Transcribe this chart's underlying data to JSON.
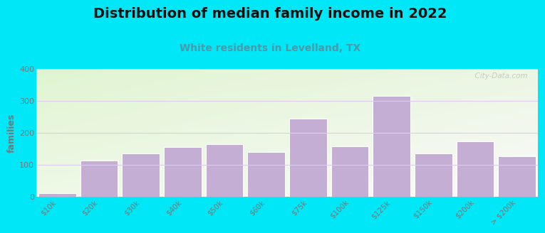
{
  "title": "Distribution of median family income in 2022",
  "subtitle": "White residents in Levelland, TX",
  "categories": [
    "$10k",
    "$20k",
    "$30k",
    "$40k",
    "$50k",
    "$60k",
    "$75k",
    "$100k",
    "$125k",
    "$150k",
    "$200k",
    "> $200k"
  ],
  "values": [
    10,
    113,
    135,
    155,
    165,
    140,
    243,
    158,
    315,
    135,
    173,
    126
  ],
  "bar_color": "#c4aed4",
  "bar_edge_color": "#ffffff",
  "ylabel": "families",
  "ylim": [
    0,
    400
  ],
  "yticks": [
    0,
    100,
    200,
    300,
    400
  ],
  "background_outer": "#00e8f8",
  "plot_bg_color_tl": "#dff0d0",
  "plot_bg_color_tr": "#f0f4ee",
  "plot_bg_color_br": "#f8f8f8",
  "title_fontsize": 14,
  "subtitle_fontsize": 10,
  "subtitle_color": "#4a9aaa",
  "watermark": "  City-Data.com",
  "grid_color": "#ddccee",
  "tick_color": "#777777"
}
